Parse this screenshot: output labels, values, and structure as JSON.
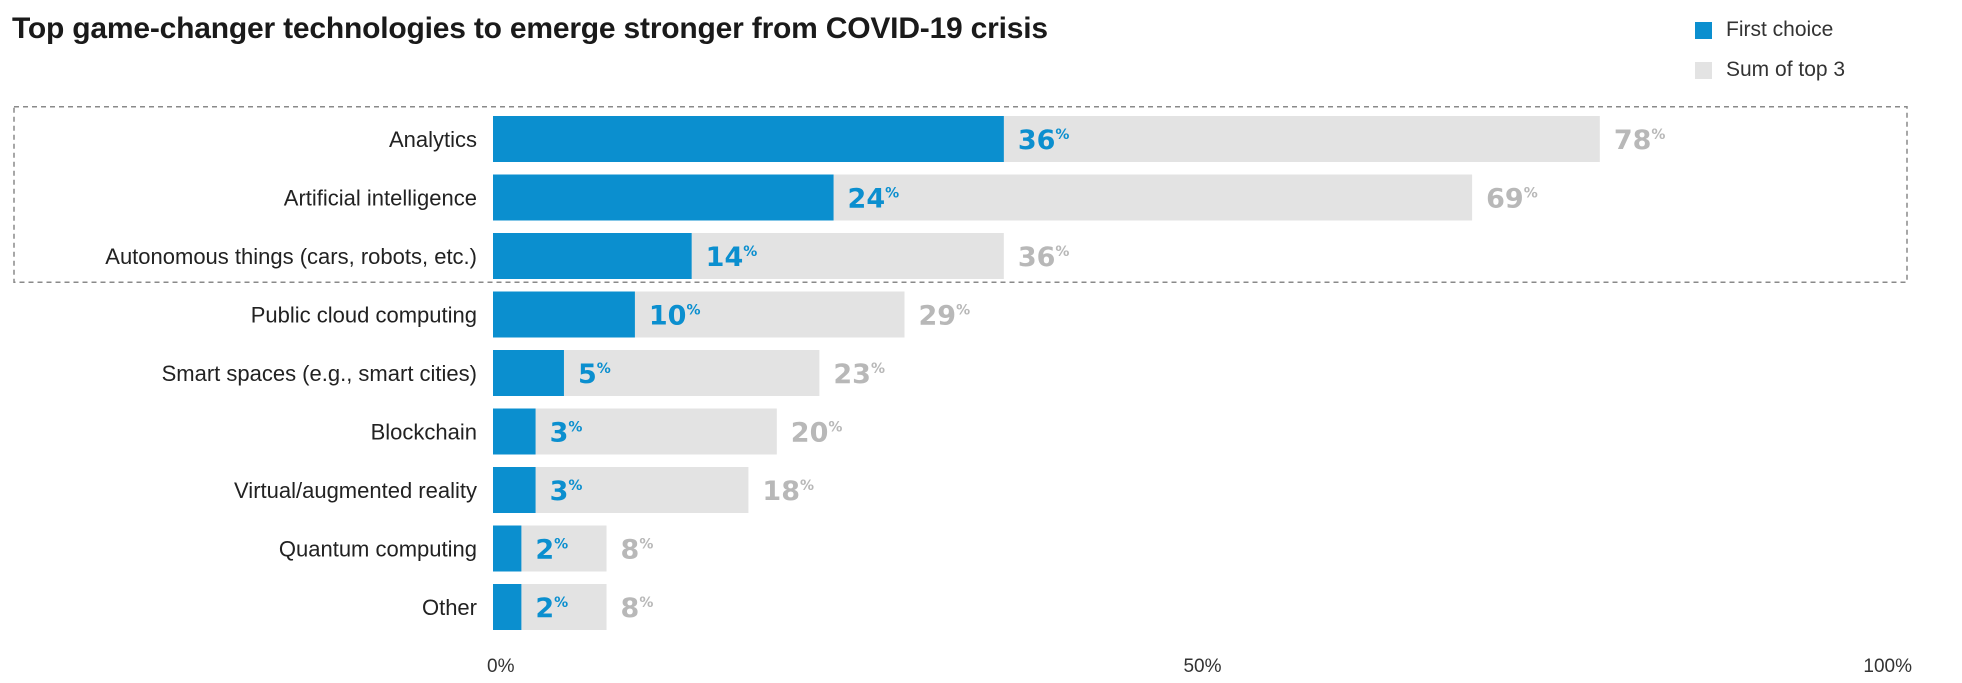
{
  "title": "Top game-changer technologies to emerge stronger from COVID-19 crisis",
  "legend": [
    {
      "label": "First choice",
      "color": "#0b8fcf"
    },
    {
      "label": "Sum of top 3",
      "color": "#e3e3e3"
    }
  ],
  "chart_data": {
    "type": "bar",
    "orientation": "horizontal",
    "categories": [
      "Analytics",
      "Artificial intelligence",
      "Autonomous things (cars, robots, etc.)",
      "Public cloud computing",
      "Smart spaces (e.g., smart cities)",
      "Blockchain",
      "Virtual/augmented reality",
      "Quantum computing",
      "Other"
    ],
    "series": [
      {
        "name": "First choice",
        "color": "#0b8fcf",
        "values": [
          36,
          24,
          14,
          10,
          5,
          3,
          3,
          2,
          2
        ]
      },
      {
        "name": "Sum of top 3",
        "color": "#e3e3e3",
        "values": [
          78,
          69,
          36,
          29,
          23,
          20,
          18,
          8,
          8
        ]
      }
    ],
    "value_suffix": "%",
    "xlim": [
      0,
      100
    ],
    "x_ticks": [
      {
        "value": 0,
        "label": "0%"
      },
      {
        "value": 50,
        "label": "50%"
      },
      {
        "value": 100,
        "label": "100%"
      }
    ],
    "highlight_categories": 3,
    "grid": false,
    "legend_position": "top-right"
  }
}
